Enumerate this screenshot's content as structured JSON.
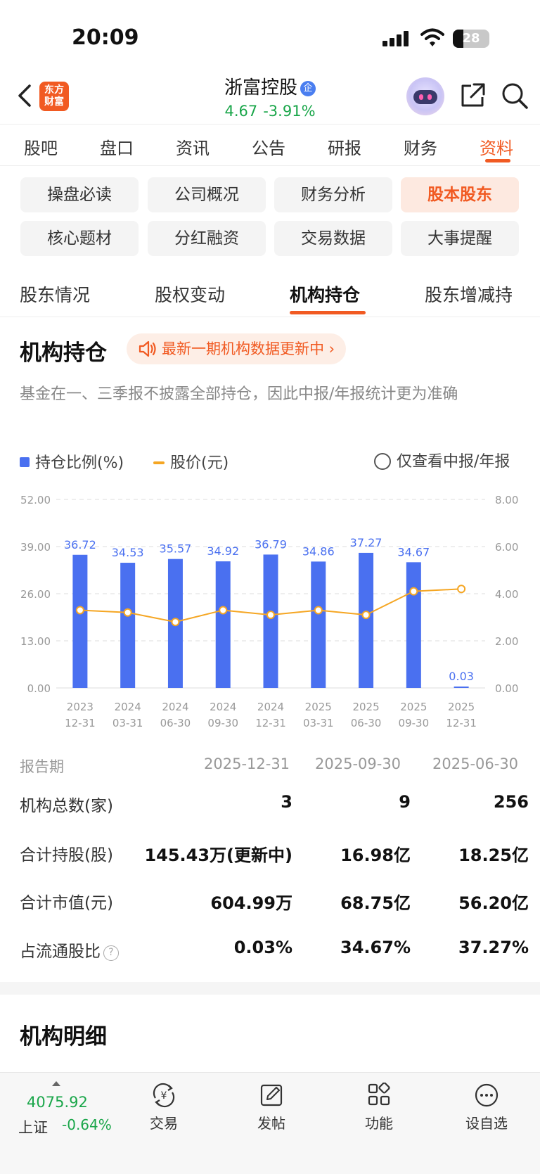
{
  "status_bar": {
    "time": "20:09",
    "battery": "28",
    "battery_level": 0.28
  },
  "header": {
    "logo_line1": "东方",
    "logo_line2": "财富",
    "stock_name": "浙富控股",
    "badge": "企",
    "price": "4.67",
    "change_pct": "-3.91%"
  },
  "main_tabs": [
    "股吧",
    "盘口",
    "资讯",
    "公告",
    "研报",
    "财务",
    "资料"
  ],
  "main_tab_active": 6,
  "grid_buttons": [
    "操盘必读",
    "公司概况",
    "财务分析",
    "股本股东",
    "核心题材",
    "分红融资",
    "交易数据",
    "大事提醒"
  ],
  "grid_active": 3,
  "sub_tabs": [
    "股东情况",
    "股权变动",
    "机构持仓",
    "股东增减持"
  ],
  "sub_tab_active": 2,
  "section": {
    "title": "机构持仓",
    "notice": "最新一期机构数据更新中 ›",
    "description": "基金在一、三季报不披露全部持仓，因此中报/年报统计更为准确"
  },
  "legend": {
    "bar": "持仓比例(%)",
    "line": "股价(元)",
    "toggle": "仅查看中报/年报"
  },
  "chart_data": {
    "type": "bar",
    "categories": [
      "2023\n12-31",
      "2024\n03-31",
      "2024\n06-30",
      "2024\n09-30",
      "2024\n12-31",
      "2025\n03-31",
      "2025\n06-30",
      "2025\n09-30",
      "2025\n12-31"
    ],
    "series": [
      {
        "name": "持仓比例(%)",
        "type": "bar",
        "axis": "left",
        "values": [
          36.72,
          34.53,
          35.57,
          34.92,
          36.79,
          34.86,
          37.27,
          34.67,
          0.03
        ]
      },
      {
        "name": "股价(元)",
        "type": "line",
        "axis": "right",
        "values": [
          3.3,
          3.2,
          2.8,
          3.3,
          3.1,
          3.3,
          3.1,
          4.1,
          4.2
        ]
      }
    ],
    "y_left_ticks": [
      "52.00",
      "39.00",
      "26.00",
      "13.00",
      "0.00"
    ],
    "y_right_ticks": [
      "8.00",
      "6.00",
      "4.00",
      "2.00",
      "0.00"
    ],
    "ylim_left": [
      0,
      52
    ],
    "ylim_right": [
      0,
      8
    ],
    "grid": true,
    "colors": {
      "bar": "#4a70f0",
      "line": "#f5a623",
      "label": "#4a70f0"
    }
  },
  "table": {
    "period_label": "报告期",
    "periods": [
      "2025-12-31",
      "2025-09-30",
      "2025-06-30"
    ],
    "rows": [
      {
        "label": "机构总数(家)",
        "values": [
          "3",
          "9",
          "256"
        ]
      },
      {
        "label": "合计持股(股)",
        "values": [
          "145.43万(更新中)",
          "16.98亿",
          "18.25亿"
        ]
      },
      {
        "label": "合计市值(元)",
        "values": [
          "604.99万",
          "68.75亿",
          "56.20亿"
        ]
      },
      {
        "label": "占流通股比",
        "values": [
          "0.03%",
          "34.67%",
          "37.27%"
        ]
      }
    ]
  },
  "section2": {
    "title": "机构明细"
  },
  "bottom_bar": {
    "index_value": "4075.92",
    "index_name": "上证",
    "index_change": "-0.64%",
    "nav": [
      "交易",
      "发帖",
      "功能",
      "设自选"
    ]
  }
}
